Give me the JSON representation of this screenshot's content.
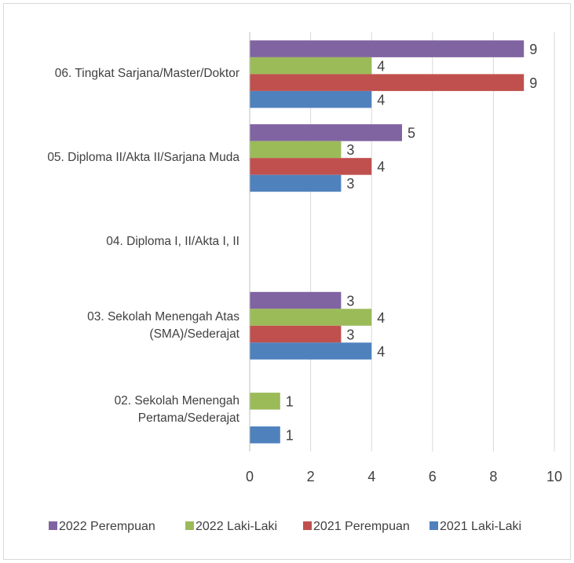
{
  "chart_data": {
    "type": "bar",
    "orientation": "horizontal",
    "categories": [
      "06. Tingkat Sarjana/Master/Doktor",
      "05. Diploma II/Akta II/Sarjana Muda",
      "04. Diploma I, II/Akta I, II",
      "03. Sekolah Menengah Atas (SMA)/Sederajat",
      "02. Sekolah Menengah Pertama/Sederajat"
    ],
    "series": [
      {
        "name": "2022 Perempuan",
        "color": "#8064a2",
        "values": [
          9,
          5,
          null,
          3,
          null
        ]
      },
      {
        "name": "2022 Laki-Laki",
        "color": "#9bbb59",
        "values": [
          4,
          3,
          null,
          4,
          1
        ]
      },
      {
        "name": "2021 Perempuan",
        "color": "#c0504d",
        "values": [
          9,
          4,
          null,
          3,
          null
        ]
      },
      {
        "name": "2021 Laki-Laki",
        "color": "#4f81bd",
        "values": [
          4,
          3,
          null,
          4,
          1
        ]
      }
    ],
    "xlim": [
      0,
      10
    ],
    "xticks": [
      0,
      2,
      4,
      6,
      8,
      10
    ],
    "grid": true,
    "legend": "bottom"
  }
}
